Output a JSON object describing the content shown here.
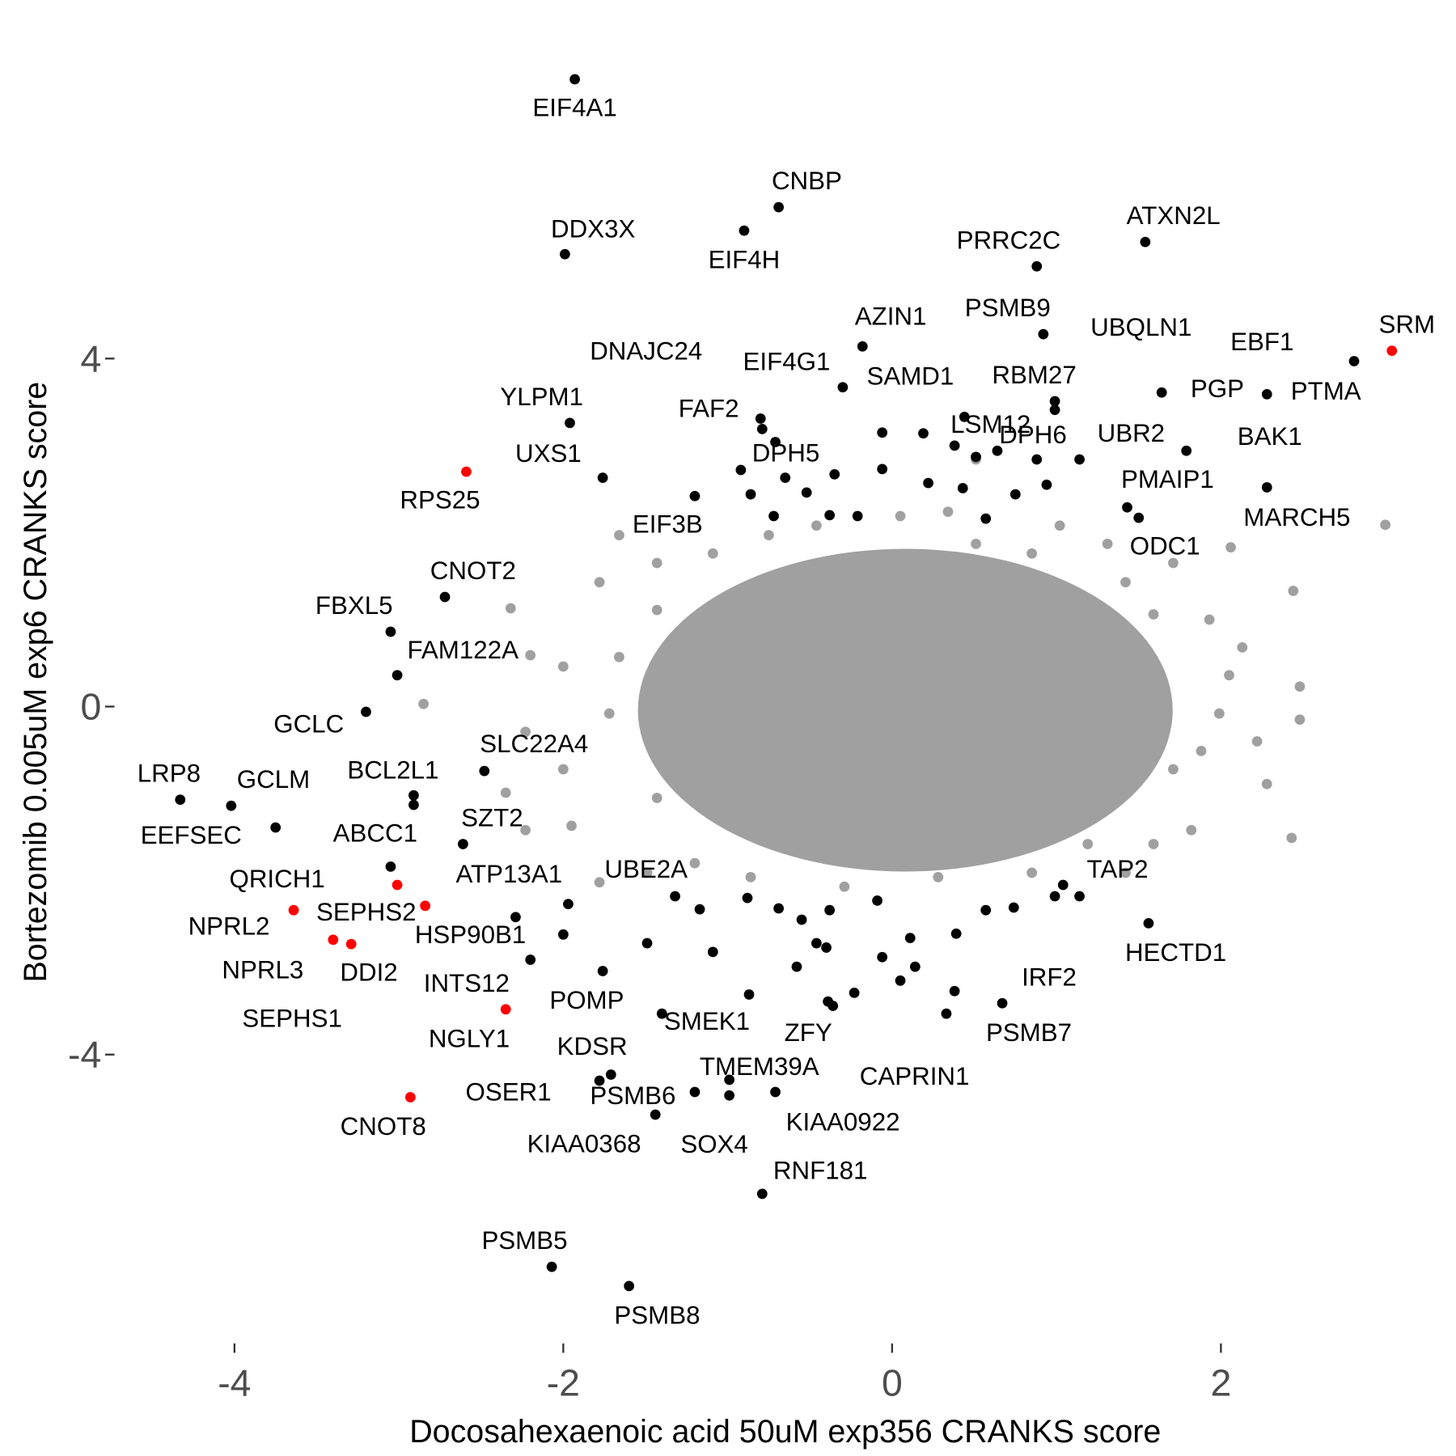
{
  "chart_data": {
    "type": "scatter",
    "xlabel": "Docosahexaenoic acid 50uM exp356 CRANKS score",
    "ylabel": "Bortezomib 0.005uM exp6 CRANKS score",
    "xlim": [
      -4.73,
      3.39
    ],
    "ylim": [
      -7.32,
      7.69
    ],
    "xticks": [
      -4,
      -2,
      0,
      2
    ],
    "yticks": [
      -4,
      0,
      4
    ],
    "series": [
      {
        "color": "#a0a0a0",
        "x": [
          3.0,
          2.48,
          2.48,
          2.43,
          2.28,
          2.06,
          2.44,
          2.22,
          2.05,
          1.93,
          1.82,
          1.59,
          1.42,
          1.71,
          1.31,
          1.02,
          0.34,
          0.05,
          -0.46,
          -0.75,
          -1.09,
          -1.43,
          -1.66,
          -1.78,
          -1.66,
          -2.0,
          -2.32,
          -2.2,
          -2.85,
          -2.23,
          -2.0,
          -2.35,
          -2.23,
          -1.95,
          -1.78,
          -1.49,
          -1.2,
          -0.86,
          -0.29,
          0.28,
          0.85,
          1.19,
          1.71,
          1.99,
          1.42,
          0.85,
          0.51,
          -1.43,
          -1.72,
          -1.43,
          0.51,
          2.13,
          1.59,
          1.88
        ],
        "y": [
          2.09,
          0.23,
          -0.15,
          -1.51,
          -0.89,
          1.83,
          1.33,
          -0.4,
          0.36,
          1.0,
          -1.42,
          -1.58,
          -1.91,
          1.65,
          1.87,
          2.08,
          2.24,
          2.19,
          2.08,
          1.97,
          1.76,
          1.65,
          1.97,
          1.43,
          0.57,
          0.46,
          1.13,
          0.59,
          0.03,
          -0.29,
          -0.72,
          -0.99,
          -1.42,
          -1.37,
          -2.02,
          -1.91,
          -1.8,
          -1.96,
          -2.07,
          -1.96,
          -1.91,
          -1.58,
          -0.72,
          -0.08,
          1.43,
          1.76,
          1.87,
          1.11,
          -0.08,
          -1.05,
          2.84,
          0.68,
          1.06,
          -0.51
        ]
      },
      {
        "color": "#000000",
        "x": [
          -0.06,
          0.19,
          0.38,
          0.51,
          0.88,
          -0.06,
          -0.35,
          -0.86,
          -0.65,
          -0.52,
          0.22,
          0.43,
          0.75,
          0.94,
          0.57,
          -0.21,
          -0.72,
          -0.38,
          -1.32,
          -1.17,
          -0.88,
          -0.69,
          -0.55,
          -0.38,
          -0.09,
          0.11,
          0.39,
          0.57,
          0.74,
          -1.49,
          -1.09,
          -0.58,
          -0.4,
          -0.06,
          0.14,
          0.05,
          0.38,
          -0.23,
          -0.87,
          -0.46,
          0.99,
          1.14
        ],
        "y": [
          3.15,
          3.14,
          3.0,
          2.87,
          2.84,
          2.73,
          2.67,
          2.44,
          2.63,
          2.46,
          2.57,
          2.51,
          2.44,
          2.55,
          2.16,
          2.19,
          2.19,
          2.2,
          -2.18,
          -2.33,
          -2.2,
          -2.32,
          -2.45,
          -2.34,
          -2.23,
          -2.66,
          -2.61,
          -2.34,
          -2.31,
          -2.72,
          -2.82,
          -2.99,
          -2.77,
          -2.88,
          -2.99,
          -3.15,
          -3.27,
          -3.29,
          -3.31,
          -2.72,
          -2.18,
          -2.18
        ]
      },
      {
        "color": "#000000",
        "labels": [
          "EIF4A1",
          "CNBP",
          "EIF4H",
          "DDX3X",
          "ATXN2L",
          "PRRC2C",
          "AZIN1",
          "PSMB9",
          "PTMA",
          "EBF1",
          "SAMD1",
          "RBM27",
          "UBQLN1",
          "PGP",
          "BAK1",
          "MARCH5",
          "YLPM1",
          "DNAJC24",
          "FAF2",
          "EIF4G1",
          "DPH5",
          "UXS1",
          "LSM12",
          "DPH6",
          "UBR2",
          "PMAIP1",
          "ODC1",
          "EIF3B",
          "CNOT2",
          "FBXL5",
          "FAM122A",
          "GCLC",
          "LRP8",
          "GCLM",
          "EEFSEC",
          "SLC22A4",
          "BCL2L1",
          "SZT2",
          "ABCC1",
          "QRICH1",
          "ATP13A1",
          "HSP90B1",
          "UBE2A",
          "INTS12",
          "POMP",
          "SMEK1",
          "KDSR",
          "OSER1",
          "PSMB6",
          "KIAA0368",
          "TMEM39A",
          "SOX4",
          "KIAA0922",
          "ZFY",
          "CAPRIN1",
          "RNF181",
          "PSMB5",
          "PSMB8",
          "TAP2",
          "HECTD1",
          "IRF2",
          "PSMB7"
        ],
        "x": [
          -1.93,
          -0.69,
          -0.9,
          -1.99,
          1.54,
          0.88,
          -0.18,
          0.92,
          2.81,
          1.64,
          -0.3,
          0.99,
          0.99,
          1.79,
          2.28,
          2.28,
          -1.96,
          -0.8,
          -0.79,
          -0.71,
          -0.92,
          -1.76,
          0.44,
          0.64,
          1.14,
          1.43,
          1.5,
          -1.2,
          -2.72,
          -3.05,
          -3.01,
          -3.2,
          -4.33,
          -4.02,
          -3.75,
          -2.48,
          -2.91,
          -2.61,
          -2.91,
          -3.05,
          -2.29,
          -2.0,
          -1.97,
          -2.2,
          -1.76,
          -1.4,
          -1.71,
          -1.78,
          -1.2,
          -1.44,
          -0.99,
          -0.99,
          -0.71,
          -0.39,
          -0.36,
          -0.79,
          -2.07,
          -1.6,
          1.04,
          1.56,
          0.67,
          0.33
        ],
        "y": [
          7.21,
          5.74,
          5.47,
          5.2,
          5.34,
          5.06,
          4.14,
          4.28,
          3.97,
          3.61,
          3.67,
          3.51,
          3.41,
          2.94,
          3.59,
          2.52,
          3.26,
          3.31,
          3.19,
          3.04,
          2.72,
          2.63,
          3.33,
          2.94,
          2.84,
          2.29,
          2.17,
          2.42,
          1.26,
          0.86,
          0.36,
          -0.06,
          -1.07,
          -1.14,
          -1.39,
          -0.74,
          -1.02,
          -1.58,
          -1.13,
          -1.84,
          -2.42,
          -2.62,
          -2.27,
          -2.91,
          -3.04,
          -3.53,
          -4.23,
          -4.3,
          -4.43,
          -4.69,
          -4.29,
          -4.47,
          -4.43,
          -3.39,
          -3.44,
          -5.6,
          -6.44,
          -6.66,
          -2.05,
          -2.49,
          -3.41,
          -3.53
        ]
      },
      {
        "color": "#ff0000",
        "labels": [
          "SRM",
          "RPS25",
          "SEPHS2",
          "NPRL2",
          "NPRL3",
          "SEPHS1",
          "DDI2",
          "NGLY1",
          "CNOT8"
        ],
        "x": [
          3.04,
          -2.59,
          -3.01,
          -3.64,
          -3.4,
          -3.29,
          -2.84,
          -2.35,
          -2.93
        ],
        "y": [
          4.09,
          2.7,
          -2.05,
          -2.34,
          -2.68,
          -2.73,
          -2.29,
          -3.48,
          -4.49
        ]
      }
    ]
  }
}
